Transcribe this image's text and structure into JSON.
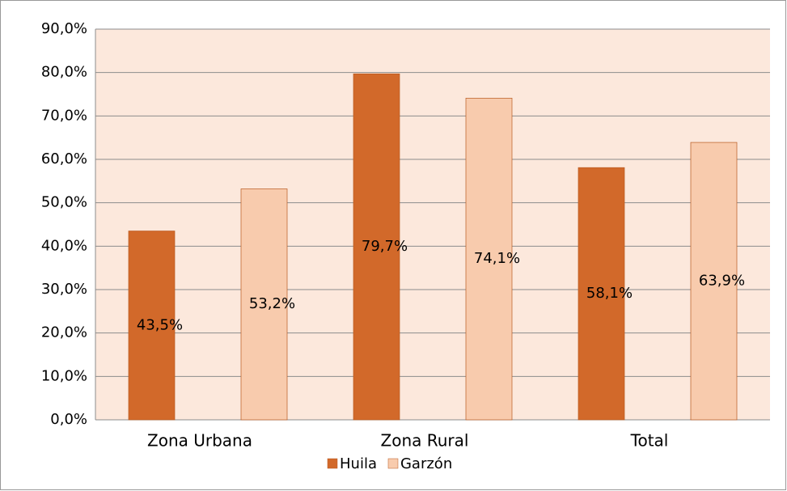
{
  "chart_data": {
    "type": "bar",
    "categories": [
      "Zona Urbana",
      "Zona Rural",
      "Total"
    ],
    "series": [
      {
        "name": "Huila",
        "color": "#d2692a",
        "values": [
          43.5,
          79.7,
          58.1
        ],
        "value_labels": [
          "43,5%",
          "79,7%",
          "58,1%"
        ]
      },
      {
        "name": "Garzón",
        "color": "#f8cbad",
        "values": [
          53.2,
          74.1,
          63.9
        ],
        "value_labels": [
          "53,2%",
          "74,1%",
          "63,9%"
        ]
      }
    ],
    "ylim": [
      0,
      90
    ],
    "yticks": [
      {
        "value": 0,
        "label": "0,0%"
      },
      {
        "value": 10,
        "label": "10,0%"
      },
      {
        "value": 20,
        "label": "20,0%"
      },
      {
        "value": 30,
        "label": "30,0%"
      },
      {
        "value": 40,
        "label": "40,0%"
      },
      {
        "value": 50,
        "label": "50,0%"
      },
      {
        "value": 60,
        "label": "60,0%"
      },
      {
        "value": 70,
        "label": "70,0%"
      },
      {
        "value": 80,
        "label": "80,0%"
      },
      {
        "value": 90,
        "label": "90,0%"
      }
    ],
    "grid": true,
    "legend": "bottom"
  }
}
